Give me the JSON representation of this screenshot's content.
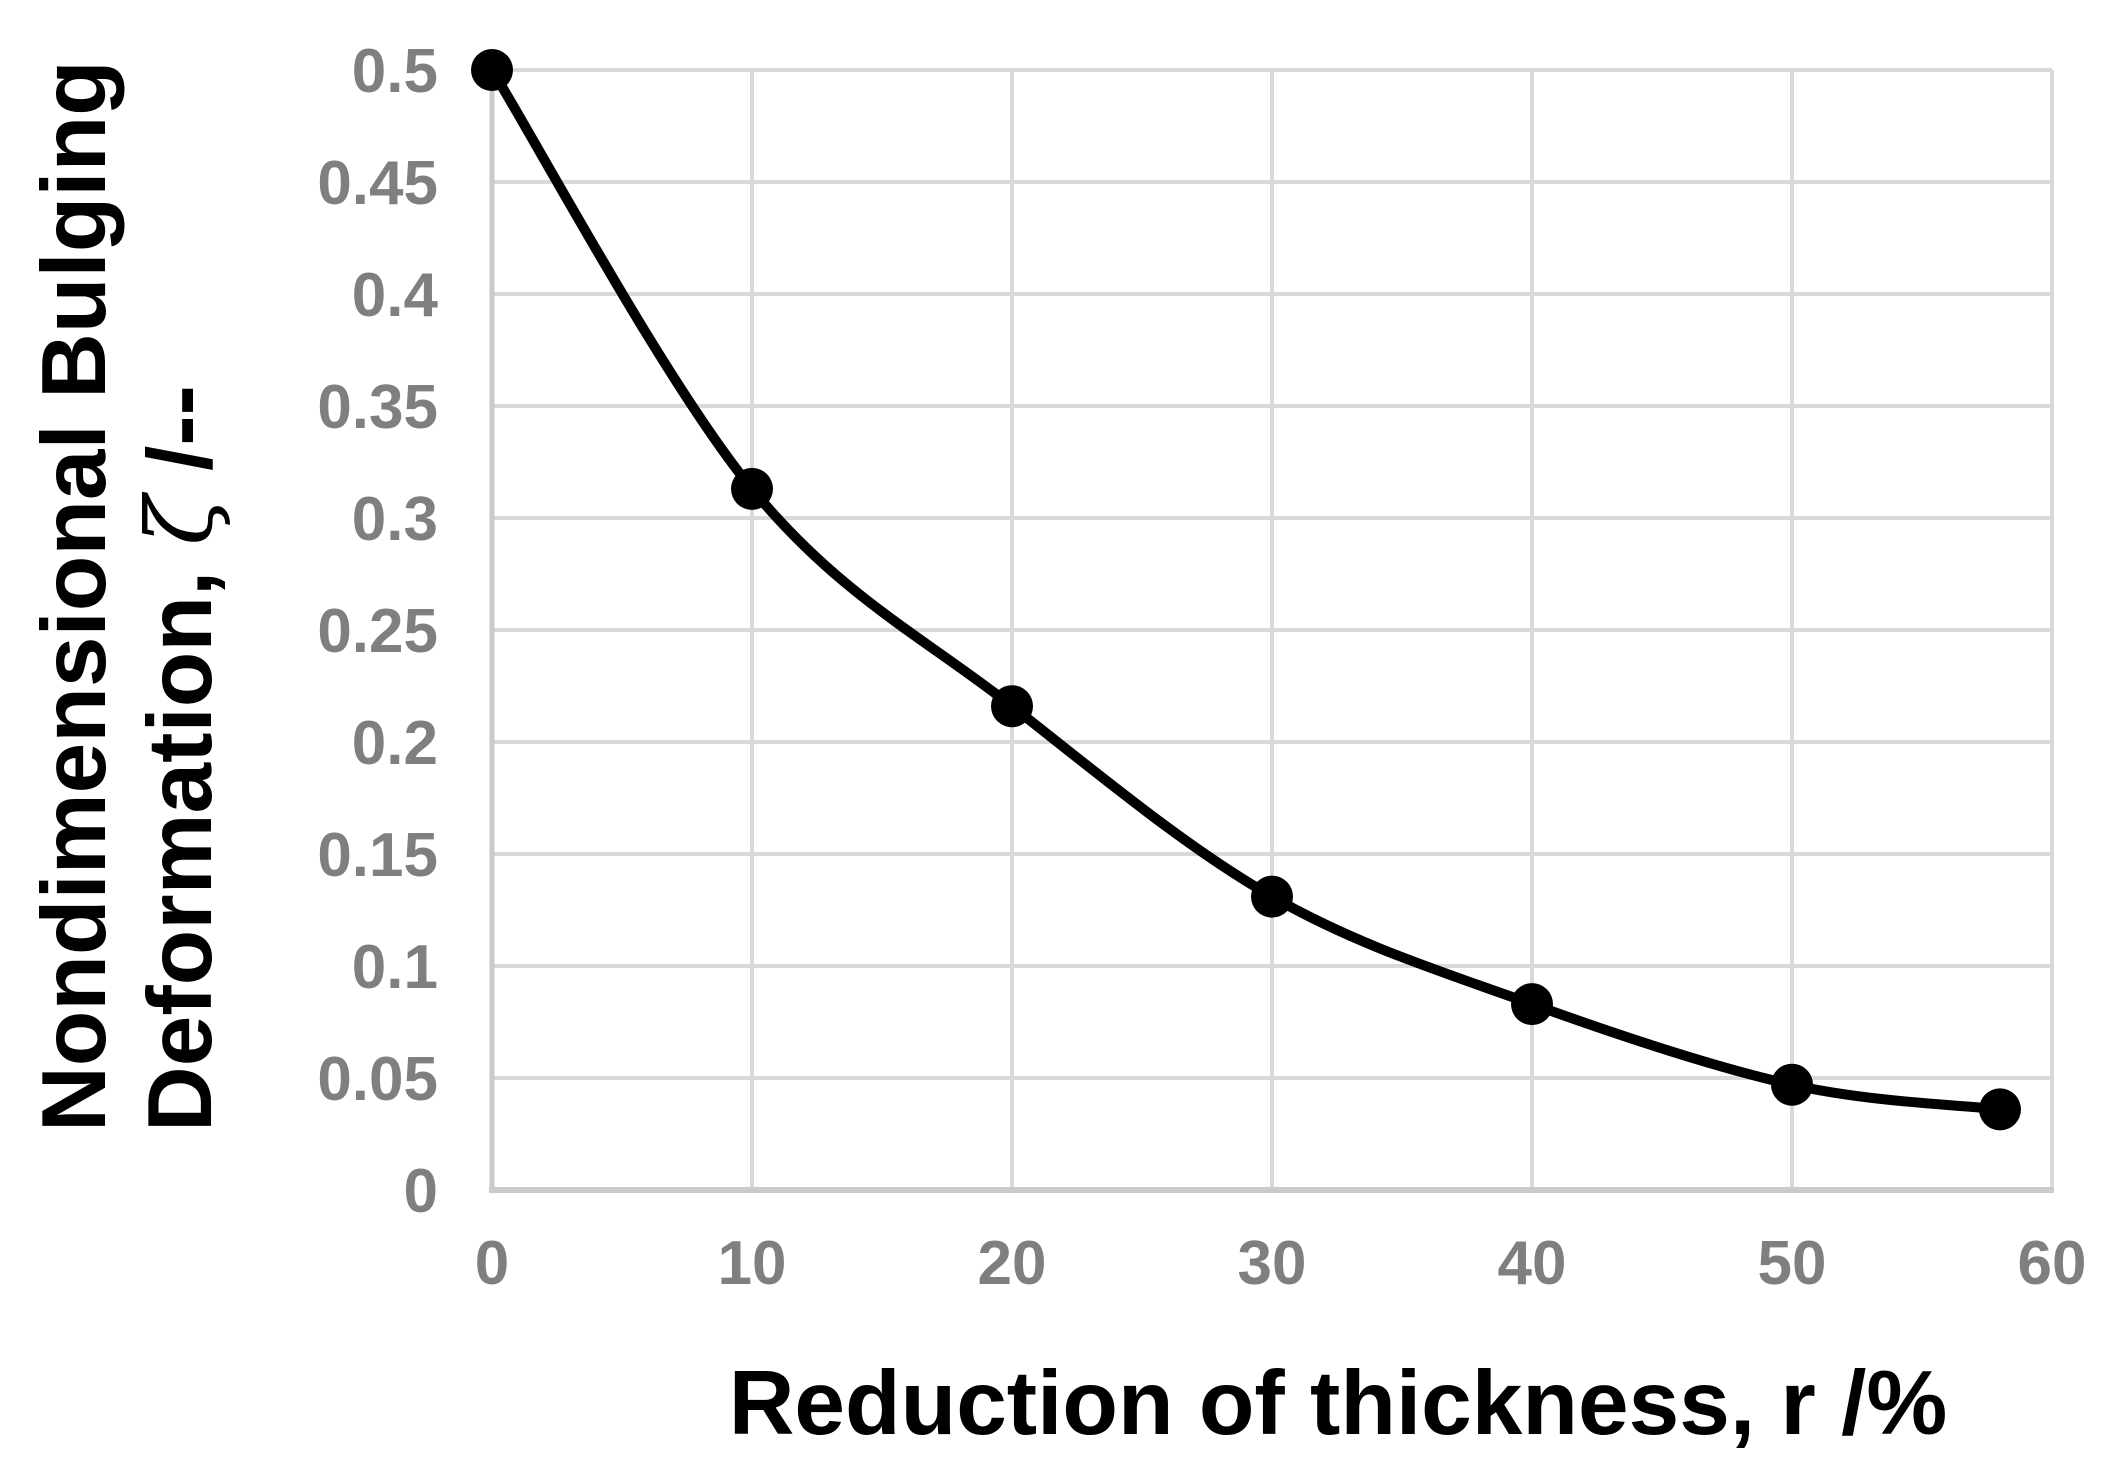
{
  "figure": {
    "background": "#ffffff"
  },
  "chart_data": {
    "type": "line",
    "title": "",
    "xlabel_prefix": "Reduction of thickness, ",
    "xlabel_var": "r",
    "xlabel_suffix": " /%",
    "ylabel_line1": "Nondimensional Bulging",
    "ylabel_line2_prefix": "Deformation, ",
    "ylabel_var": "ζ",
    "ylabel_line2_suffix": " /--",
    "series": [
      {
        "name": "nondimensional-bulging-deformation",
        "x": [
          0,
          10,
          20,
          30,
          40,
          50,
          58
        ],
        "y": [
          0.5,
          0.313,
          0.216,
          0.131,
          0.083,
          0.047,
          0.036
        ],
        "color": "#000000",
        "marker": "circle",
        "smooth": true
      }
    ],
    "xlim": [
      0,
      60
    ],
    "ylim": [
      0,
      0.5
    ],
    "x_ticks": [
      0,
      10,
      20,
      30,
      40,
      50,
      60
    ],
    "x_tick_labels": [
      "0",
      "10",
      "20",
      "30",
      "40",
      "50",
      "60"
    ],
    "y_ticks": [
      0,
      0.05,
      0.1,
      0.15,
      0.2,
      0.25,
      0.3,
      0.35,
      0.4,
      0.45,
      0.5
    ],
    "y_tick_labels": [
      "0",
      "0.05",
      "0.1",
      "0.15",
      "0.2",
      "0.25",
      "0.3",
      "0.35",
      "0.4",
      "0.45",
      "0.5"
    ],
    "grid": true,
    "legend_position": "none",
    "colors": {
      "gridline": "#d9d9d9",
      "axis_line": "#cbcbcb",
      "tick_label": "#7f7f7f",
      "axis_title": "#000000",
      "series": "#000000"
    }
  }
}
